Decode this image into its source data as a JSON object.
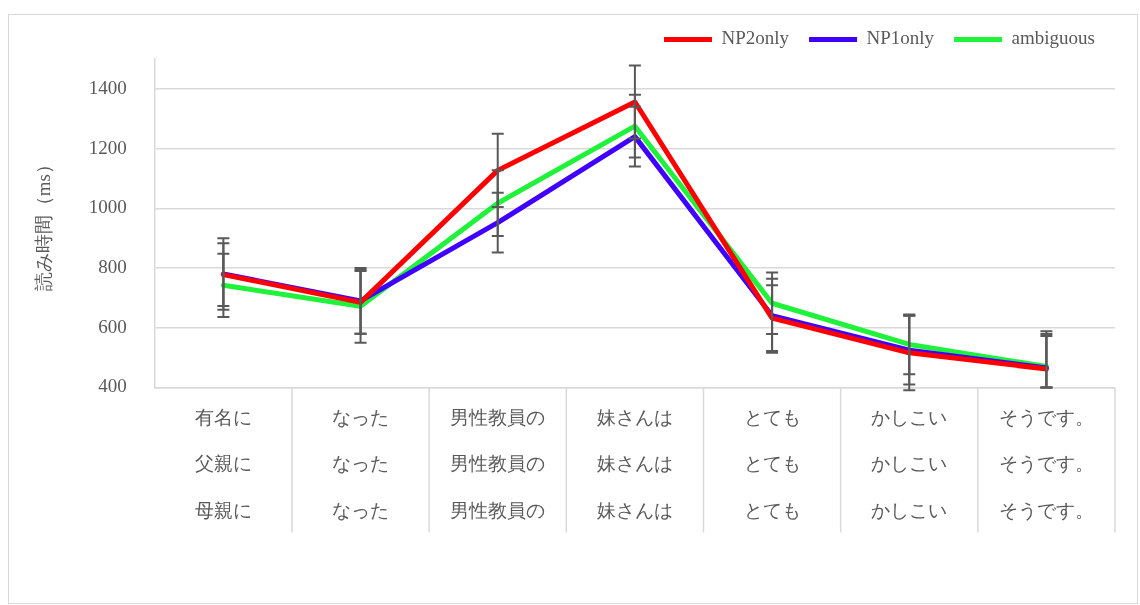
{
  "chart_data": {
    "type": "line",
    "ylabel": "読み時間（ms）",
    "categories": [
      "有名に",
      "なった",
      "男性教員の",
      "妹さんは",
      "とても",
      "かしこい",
      "そうです。"
    ],
    "annotations": [
      "父親に",
      "なった",
      "男性教員の",
      "妹さんは",
      "とても",
      "かしこい",
      "そうです。",
      "母親に",
      "なった",
      "男性教員の",
      "妹さんは",
      "とても",
      "かしこい",
      "そうです。"
    ],
    "series": [
      {
        "name": "NP2only",
        "color": "#ff0000",
        "values": [
          778,
          685,
          1127,
          1356,
          632,
          516,
          462
        ],
        "errors": [
          105,
          105,
          123,
          122,
          110,
          125,
          [
            400,
            588
          ]
        ]
      },
      {
        "name": "NP1only",
        "color": "#3f00ff",
        "values": [
          780,
          690,
          952,
          1240,
          640,
          525,
          465
        ],
        "errors": [
          120,
          110,
          100,
          100,
          124,
          115,
          [
            400,
            579
          ]
        ]
      },
      {
        "name": "ambiguous",
        "color": "#1ff23a",
        "values": [
          742,
          672,
          1017,
          1275,
          682,
          544,
          470
        ],
        "errors": [
          106,
          122,
          110,
          105,
          103,
          100,
          [
            400,
            572
          ]
        ]
      }
    ],
    "ylim": [
      400,
      1500
    ],
    "yticks": [
      400,
      600,
      800,
      1000,
      1200,
      1400
    ],
    "grid": "y",
    "legend": "top right",
    "marker": "none",
    "line_style": "solid"
  }
}
